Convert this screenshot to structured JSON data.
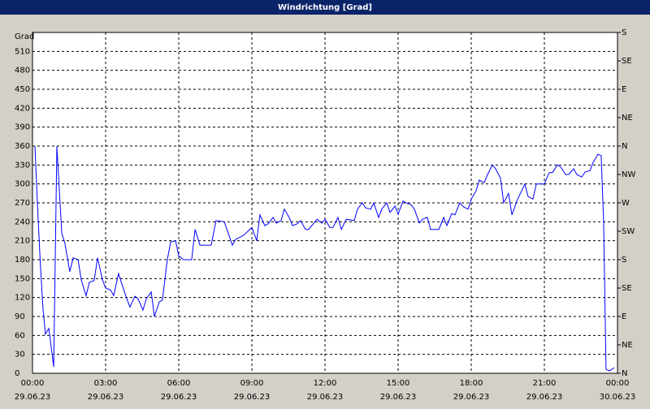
{
  "chart_data": {
    "type": "line",
    "title": "Windrichtung [Grad]",
    "ylabel": "Grad",
    "xlim": [
      0,
      24
    ],
    "xticks": [
      {
        "value": 0,
        "label": "00:00"
      },
      {
        "value": 3,
        "label": "03:00"
      },
      {
        "value": 6,
        "label": "06:00"
      },
      {
        "value": 9,
        "label": "09:00"
      },
      {
        "value": 12,
        "label": "12:00"
      },
      {
        "value": 15,
        "label": "15:00"
      },
      {
        "value": 18,
        "label": "18:00"
      },
      {
        "value": 21,
        "label": "21:00"
      },
      {
        "value": 24,
        "label": "00:00"
      }
    ],
    "xtick_dates": [
      "29.06.23",
      "29.06.23",
      "29.06.23",
      "29.06.23",
      "29.06.23",
      "29.06.23",
      "29.06.23",
      "29.06.23",
      "30.06.23"
    ],
    "ylim": [
      0,
      540
    ],
    "yticks": [
      0,
      30,
      60,
      90,
      120,
      150,
      180,
      210,
      240,
      270,
      300,
      330,
      360,
      390,
      420,
      450,
      480,
      510
    ],
    "y2lim": [
      0,
      540
    ],
    "y2ticks": [
      {
        "value": 0,
        "label": "N"
      },
      {
        "value": 45,
        "label": "NE"
      },
      {
        "value": 90,
        "label": "E"
      },
      {
        "value": 135,
        "label": "SE"
      },
      {
        "value": 180,
        "label": "S"
      },
      {
        "value": 225,
        "label": "SW"
      },
      {
        "value": 270,
        "label": "W"
      },
      {
        "value": 315,
        "label": "NW"
      },
      {
        "value": 360,
        "label": "N"
      },
      {
        "value": 405,
        "label": "NE"
      },
      {
        "value": 450,
        "label": "E"
      },
      {
        "value": 495,
        "label": "SE"
      },
      {
        "value": 540,
        "label": "S"
      }
    ],
    "grid": true,
    "color": "#0000ff",
    "x": [
      0.1,
      0.2,
      0.33,
      0.43,
      0.53,
      0.67,
      0.87,
      1.0,
      1.2,
      1.33,
      1.53,
      1.67,
      1.87,
      2.0,
      2.2,
      2.33,
      2.53,
      2.67,
      2.87,
      3.0,
      3.2,
      3.33,
      3.53,
      3.67,
      3.87,
      4.0,
      4.2,
      4.33,
      4.53,
      4.67,
      4.87,
      5.0,
      5.2,
      5.33,
      5.53,
      5.67,
      5.87,
      6.0,
      6.2,
      6.53,
      6.67,
      6.87,
      7.33,
      7.53,
      7.87,
      8.2,
      8.33,
      8.67,
      9.0,
      9.2,
      9.33,
      9.53,
      9.67,
      9.87,
      10.0,
      10.2,
      10.33,
      10.53,
      10.67,
      10.87,
      11.0,
      11.2,
      11.33,
      11.67,
      11.87,
      12.0,
      12.2,
      12.33,
      12.53,
      12.67,
      12.87,
      13.2,
      13.33,
      13.53,
      13.67,
      13.87,
      14.0,
      14.2,
      14.33,
      14.53,
      14.67,
      14.87,
      15.0,
      15.2,
      15.33,
      15.53,
      15.67,
      15.87,
      16.0,
      16.2,
      16.33,
      16.67,
      16.87,
      17.0,
      17.2,
      17.33,
      17.53,
      17.67,
      17.87,
      18.0,
      18.2,
      18.33,
      18.53,
      18.67,
      18.87,
      19.0,
      19.2,
      19.33,
      19.53,
      19.67,
      19.87,
      20.2,
      20.33,
      20.53,
      20.67,
      21.0,
      21.2,
      21.33,
      21.53,
      21.67,
      21.87,
      22.0,
      22.2,
      22.33,
      22.53,
      22.67,
      22.87,
      23.0,
      23.2,
      23.33,
      23.43,
      23.53,
      23.67,
      23.87
    ],
    "values": [
      360,
      270,
      167,
      103,
      62,
      71,
      10,
      360,
      222,
      206,
      161,
      183,
      180,
      148,
      123,
      144,
      147,
      183,
      148,
      135,
      132,
      123,
      158,
      141,
      118,
      105,
      122,
      118,
      100,
      118,
      129,
      90,
      113,
      116,
      180,
      208,
      210,
      186,
      180,
      180,
      228,
      203,
      203,
      242,
      240,
      203,
      212,
      219,
      231,
      210,
      251,
      234,
      237,
      247,
      238,
      242,
      260,
      247,
      234,
      237,
      242,
      228,
      228,
      244,
      238,
      244,
      231,
      231,
      247,
      228,
      244,
      242,
      260,
      270,
      262,
      260,
      270,
      247,
      260,
      270,
      255,
      265,
      252,
      273,
      270,
      267,
      260,
      238,
      244,
      247,
      228,
      228,
      247,
      234,
      253,
      251,
      270,
      264,
      260,
      276,
      289,
      306,
      302,
      315,
      330,
      324,
      309,
      270,
      285,
      251,
      273,
      300,
      280,
      276,
      300,
      300,
      318,
      318,
      330,
      327,
      315,
      315,
      324,
      315,
      311,
      319,
      321,
      334,
      347,
      345,
      242,
      6,
      4,
      9
    ]
  }
}
